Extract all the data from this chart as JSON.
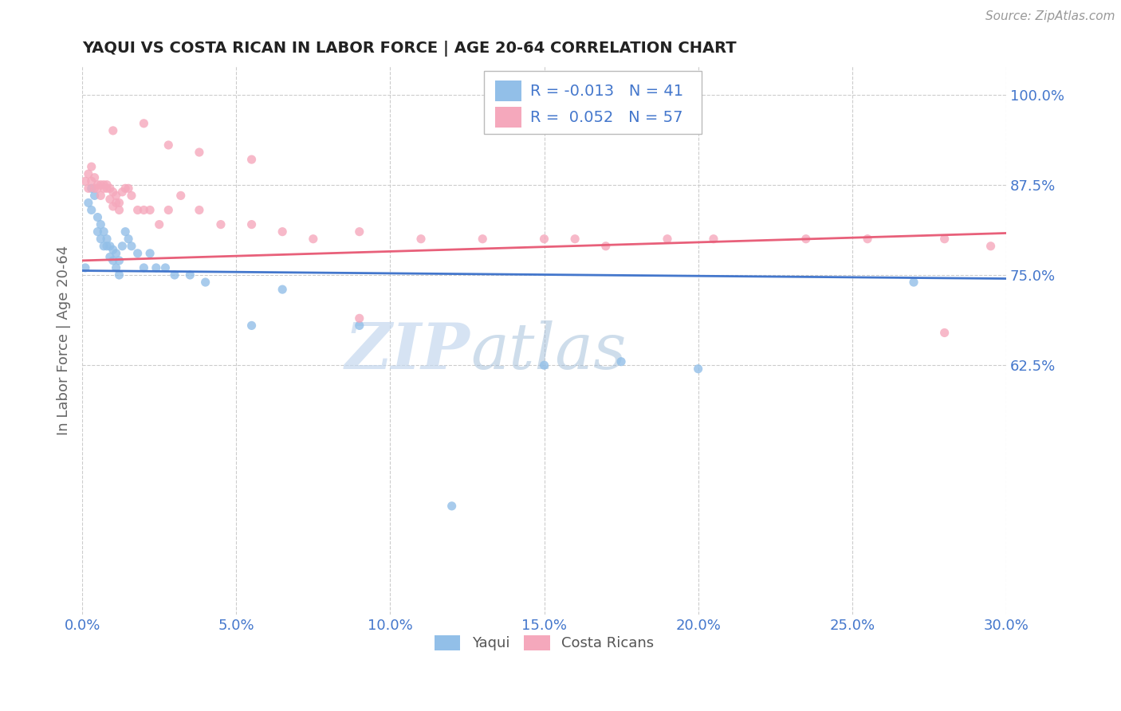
{
  "title": "YAQUI VS COSTA RICAN IN LABOR FORCE | AGE 20-64 CORRELATION CHART",
  "source_text": "Source: ZipAtlas.com",
  "ylabel": "In Labor Force | Age 20-64",
  "xlim": [
    0.0,
    0.3
  ],
  "ylim": [
    0.28,
    1.04
  ],
  "yticks": [
    0.625,
    0.75,
    0.875,
    1.0
  ],
  "ytick_labels": [
    "62.5%",
    "75.0%",
    "87.5%",
    "100.0%"
  ],
  "xticks": [
    0.0,
    0.05,
    0.1,
    0.15,
    0.2,
    0.25,
    0.3
  ],
  "xtick_labels": [
    "0.0%",
    "5.0%",
    "10.0%",
    "15.0%",
    "20.0%",
    "25.0%",
    "30.0%"
  ],
  "legend_r_blue": "-0.013",
  "legend_n_blue": "41",
  "legend_r_pink": "0.052",
  "legend_n_pink": "57",
  "blue_color": "#92bfe8",
  "pink_color": "#f5a8bc",
  "blue_line_color": "#4477cc",
  "pink_line_color": "#e8607a",
  "watermark_text": "ZIP",
  "watermark_text2": "atlas",
  "background_color": "#ffffff",
  "grid_color": "#cccccc",
  "blue_trend": [
    0.756,
    0.745
  ],
  "pink_trend": [
    0.77,
    0.808
  ],
  "yaqui_x": [
    0.001,
    0.002,
    0.003,
    0.003,
    0.004,
    0.005,
    0.005,
    0.006,
    0.006,
    0.007,
    0.007,
    0.008,
    0.008,
    0.009,
    0.009,
    0.01,
    0.01,
    0.011,
    0.011,
    0.012,
    0.012,
    0.013,
    0.014,
    0.015,
    0.016,
    0.018,
    0.02,
    0.022,
    0.024,
    0.027,
    0.03,
    0.035,
    0.04,
    0.055,
    0.065,
    0.09,
    0.12,
    0.15,
    0.175,
    0.2,
    0.27
  ],
  "yaqui_y": [
    0.76,
    0.85,
    0.84,
    0.87,
    0.86,
    0.83,
    0.81,
    0.82,
    0.8,
    0.79,
    0.81,
    0.79,
    0.8,
    0.79,
    0.775,
    0.785,
    0.77,
    0.78,
    0.76,
    0.77,
    0.75,
    0.79,
    0.81,
    0.8,
    0.79,
    0.78,
    0.76,
    0.78,
    0.76,
    0.76,
    0.75,
    0.75,
    0.74,
    0.68,
    0.73,
    0.68,
    0.43,
    0.625,
    0.63,
    0.62,
    0.74
  ],
  "costarican_x": [
    0.001,
    0.002,
    0.002,
    0.003,
    0.003,
    0.004,
    0.004,
    0.005,
    0.005,
    0.006,
    0.006,
    0.007,
    0.007,
    0.008,
    0.008,
    0.009,
    0.009,
    0.01,
    0.01,
    0.011,
    0.011,
    0.012,
    0.012,
    0.013,
    0.014,
    0.015,
    0.016,
    0.018,
    0.02,
    0.022,
    0.025,
    0.028,
    0.032,
    0.038,
    0.045,
    0.055,
    0.065,
    0.075,
    0.09,
    0.11,
    0.13,
    0.15,
    0.16,
    0.17,
    0.19,
    0.205,
    0.235,
    0.255,
    0.28,
    0.295,
    0.01,
    0.02,
    0.028,
    0.038,
    0.055,
    0.09,
    0.28
  ],
  "costarican_y": [
    0.88,
    0.87,
    0.89,
    0.9,
    0.88,
    0.87,
    0.885,
    0.875,
    0.87,
    0.875,
    0.86,
    0.87,
    0.875,
    0.87,
    0.875,
    0.87,
    0.855,
    0.845,
    0.865,
    0.85,
    0.86,
    0.85,
    0.84,
    0.865,
    0.87,
    0.87,
    0.86,
    0.84,
    0.84,
    0.84,
    0.82,
    0.84,
    0.86,
    0.84,
    0.82,
    0.82,
    0.81,
    0.8,
    0.81,
    0.8,
    0.8,
    0.8,
    0.8,
    0.79,
    0.8,
    0.8,
    0.8,
    0.8,
    0.8,
    0.79,
    0.95,
    0.96,
    0.93,
    0.92,
    0.91,
    0.69,
    0.67
  ]
}
